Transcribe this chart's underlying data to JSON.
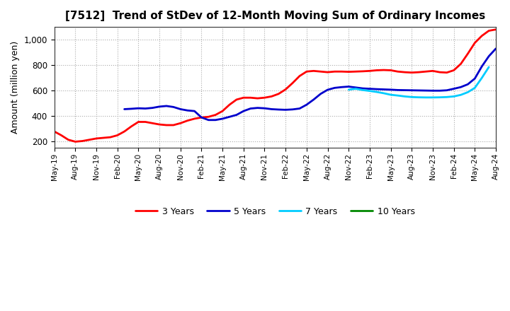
{
  "title": "[7512]  Trend of StDev of 12-Month Moving Sum of Ordinary Incomes",
  "ylabel": "Amount (million yen)",
  "ylim": [
    150,
    1100
  ],
  "yticks": [
    200,
    400,
    600,
    800,
    1000
  ],
  "background_color": "#ffffff",
  "plot_bg_color": "#ffffff",
  "grid_color": "#aaaaaa",
  "line_3y_color": "#ff0000",
  "line_5y_color": "#0000cc",
  "line_7y_color": "#00ccff",
  "line_10y_color": "#008800",
  "line_width": 2.0,
  "legend_labels": [
    "3 Years",
    "5 Years",
    "7 Years",
    "10 Years"
  ],
  "data_3y": [
    280,
    250,
    215,
    200,
    205,
    215,
    225,
    230,
    235,
    250,
    280,
    320,
    355,
    355,
    345,
    335,
    330,
    330,
    345,
    365,
    380,
    390,
    395,
    410,
    440,
    490,
    530,
    545,
    545,
    540,
    545,
    555,
    575,
    610,
    660,
    715,
    750,
    755,
    750,
    745,
    750,
    750,
    748,
    750,
    752,
    755,
    760,
    762,
    760,
    750,
    745,
    742,
    745,
    750,
    755,
    745,
    742,
    760,
    810,
    890,
    975,
    1030,
    1070,
    1080
  ],
  "data_5y": [
    null,
    null,
    null,
    null,
    null,
    null,
    null,
    null,
    null,
    null,
    455,
    458,
    462,
    460,
    465,
    475,
    480,
    472,
    455,
    445,
    440,
    390,
    370,
    370,
    380,
    395,
    410,
    440,
    460,
    465,
    462,
    455,
    452,
    450,
    453,
    460,
    490,
    530,
    575,
    607,
    622,
    628,
    632,
    625,
    618,
    615,
    612,
    610,
    608,
    605,
    604,
    603,
    602,
    601,
    600,
    600,
    603,
    615,
    628,
    650,
    695,
    790,
    870,
    930
  ],
  "data_7y": [
    null,
    null,
    null,
    null,
    null,
    null,
    null,
    null,
    null,
    null,
    null,
    null,
    null,
    null,
    null,
    null,
    null,
    null,
    null,
    null,
    null,
    null,
    null,
    null,
    null,
    null,
    null,
    null,
    null,
    null,
    null,
    null,
    null,
    null,
    null,
    null,
    null,
    null,
    null,
    null,
    null,
    null,
    608,
    615,
    605,
    598,
    590,
    580,
    568,
    562,
    555,
    550,
    548,
    547,
    547,
    548,
    550,
    555,
    567,
    588,
    622,
    700,
    785,
    null
  ],
  "data_10y": [
    null,
    null,
    null,
    null,
    null,
    null,
    null,
    null,
    null,
    null,
    null,
    null,
    null,
    null,
    null,
    null,
    null,
    null,
    null,
    null,
    null,
    null,
    null,
    null,
    null,
    null,
    null,
    null,
    null,
    null,
    null,
    null,
    null,
    null,
    null,
    null,
    null,
    null,
    null,
    null,
    null,
    null,
    null,
    null,
    null,
    null,
    null,
    null,
    null,
    null,
    null,
    null,
    null,
    null,
    null,
    null,
    null,
    null,
    null,
    null,
    null,
    null,
    null,
    null
  ],
  "n_points": 64,
  "xtick_labels": [
    "May-19",
    "Aug-19",
    "Nov-19",
    "Feb-20",
    "May-20",
    "Aug-20",
    "Nov-20",
    "Feb-21",
    "May-21",
    "Aug-21",
    "Nov-21",
    "Feb-22",
    "May-22",
    "Aug-22",
    "Nov-22",
    "Feb-23",
    "May-23",
    "Aug-23",
    "Nov-23",
    "Feb-24",
    "May-24",
    "Aug-24"
  ],
  "xtick_positions": [
    0,
    3,
    6,
    9,
    12,
    15,
    18,
    21,
    24,
    27,
    30,
    33,
    36,
    39,
    42,
    45,
    48,
    51,
    54,
    57,
    60,
    63
  ]
}
